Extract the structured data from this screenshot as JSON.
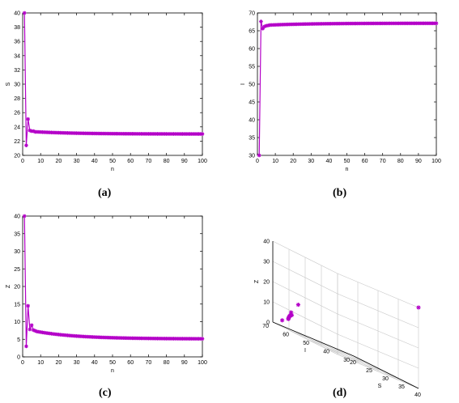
{
  "marker_color": "#b400c8",
  "chart_data": [
    {
      "id": "a",
      "type": "line",
      "panel_label": "(a)",
      "xlabel": "n",
      "ylabel": "S",
      "xlim": [
        0,
        100
      ],
      "ylim": [
        20,
        40
      ],
      "xticks": [
        0,
        10,
        20,
        30,
        40,
        50,
        60,
        70,
        80,
        90,
        100
      ],
      "yticks": [
        20,
        22,
        24,
        26,
        28,
        30,
        32,
        34,
        36,
        38,
        40
      ],
      "grid": false,
      "series": [
        {
          "marker": "asterisk",
          "x_range": [
            1,
            100
          ],
          "early": [
            40,
            21.4,
            25.1,
            23.5,
            23.4,
            23.4,
            23.3
          ],
          "tail_start": 23.3,
          "tail_end": 23.0
        }
      ]
    },
    {
      "id": "b",
      "type": "line",
      "panel_label": "(b)",
      "xlabel": "n",
      "ylabel": "I",
      "xlim": [
        0,
        100
      ],
      "ylim": [
        30,
        70
      ],
      "xticks": [
        0,
        10,
        20,
        30,
        40,
        50,
        60,
        70,
        80,
        90,
        100
      ],
      "yticks": [
        30,
        35,
        40,
        45,
        50,
        55,
        60,
        65,
        70
      ],
      "grid": false,
      "series": [
        {
          "marker": "asterisk",
          "x_range": [
            1,
            100
          ],
          "early": [
            30,
            67.6,
            65.6,
            66.2,
            66.4,
            66.5
          ],
          "tail_start": 66.6,
          "tail_end": 67.1
        }
      ]
    },
    {
      "id": "c",
      "type": "line",
      "panel_label": "(c)",
      "xlabel": "n",
      "ylabel": "Z",
      "xlim": [
        0,
        100
      ],
      "ylim": [
        0,
        40
      ],
      "xticks": [
        0,
        10,
        20,
        30,
        40,
        50,
        60,
        70,
        80,
        90,
        100
      ],
      "yticks": [
        0,
        5,
        10,
        15,
        20,
        25,
        30,
        35,
        40
      ],
      "grid": false,
      "series": [
        {
          "marker": "asterisk",
          "x_range": [
            1,
            100
          ],
          "early": [
            40,
            3,
            14.5,
            7.8,
            9.0,
            7.6,
            7.4
          ],
          "tail_start": 7.2,
          "tail_end": 5.1
        }
      ]
    },
    {
      "id": "d",
      "type": "scatter",
      "panel_label": "(d)",
      "xlabel": "S",
      "ylabel": "I",
      "zlabel": "Z",
      "xlim": [
        20,
        40
      ],
      "ylim": [
        30,
        70
      ],
      "zlim": [
        0,
        40
      ],
      "xticks": [
        20,
        25,
        30,
        35,
        40
      ],
      "yticks": [
        30,
        40,
        50,
        60,
        70
      ],
      "zticks": [
        0,
        10,
        20,
        30,
        40
      ],
      "grid": true,
      "points": [
        {
          "S": 40,
          "I": 30,
          "Z": 40
        },
        {
          "S": 21.4,
          "I": 67.6,
          "Z": 3
        },
        {
          "S": 25.1,
          "I": 65.6,
          "Z": 14.5
        },
        {
          "S": 23.5,
          "I": 66.2,
          "Z": 7.8
        },
        {
          "S": 23.4,
          "I": 66.4,
          "Z": 9.0
        },
        {
          "S": 23.4,
          "I": 66.5,
          "Z": 7.6
        },
        {
          "S": 23.3,
          "I": 66.6,
          "Z": 7.4
        },
        {
          "S": 23.2,
          "I": 66.7,
          "Z": 7.0
        },
        {
          "S": 23.1,
          "I": 66.8,
          "Z": 6.6
        },
        {
          "S": 23.1,
          "I": 66.9,
          "Z": 6.2
        },
        {
          "S": 23.0,
          "I": 67.0,
          "Z": 5.8
        },
        {
          "S": 23.0,
          "I": 67.1,
          "Z": 5.4
        },
        {
          "S": 23.0,
          "I": 67.1,
          "Z": 5.1
        }
      ]
    }
  ]
}
